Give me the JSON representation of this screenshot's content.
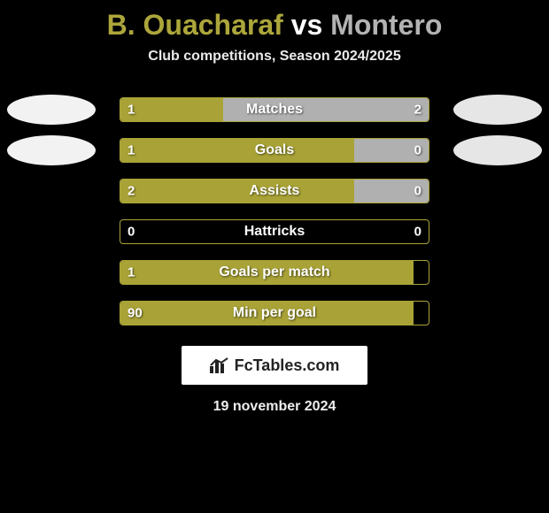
{
  "title": {
    "player_a": "B. Ouacharaf",
    "vs": "vs",
    "player_b": "Montero",
    "color_a": "#aca63b",
    "color_vs": "#ffffff",
    "color_b": "#b3b3b3"
  },
  "subtitle": "Club competitions, Season 2024/2025",
  "date": "19 november 2024",
  "branding_text": "FcTables.com",
  "team_blob": {
    "color_a": "#f2f2f2",
    "color_b": "#e6e6e6"
  },
  "bar_style": {
    "color_a": "#a9a337",
    "color_b": "#b0b0b0",
    "border_color": "#a9a337",
    "track_bg": "#000000",
    "height": 28,
    "radius": 4,
    "label_fontsize": 16,
    "value_fontsize": 15
  },
  "rows": [
    {
      "label": "Matches",
      "a": "1",
      "b": "2",
      "a_pct": 33.3,
      "b_pct": 66.7,
      "show_blobs": true
    },
    {
      "label": "Goals",
      "a": "1",
      "b": "0",
      "a_pct": 76,
      "b_pct": 24,
      "show_blobs": true
    },
    {
      "label": "Assists",
      "a": "2",
      "b": "0",
      "a_pct": 76,
      "b_pct": 24,
      "show_blobs": false
    },
    {
      "label": "Hattricks",
      "a": "0",
      "b": "0",
      "a_pct": 0,
      "b_pct": 0,
      "show_blobs": false
    },
    {
      "label": "Goals per match",
      "a": "1",
      "b": "",
      "a_pct": 95,
      "b_pct": 0,
      "show_blobs": false
    },
    {
      "label": "Min per goal",
      "a": "90",
      "b": "",
      "a_pct": 95,
      "b_pct": 0,
      "show_blobs": false
    }
  ]
}
